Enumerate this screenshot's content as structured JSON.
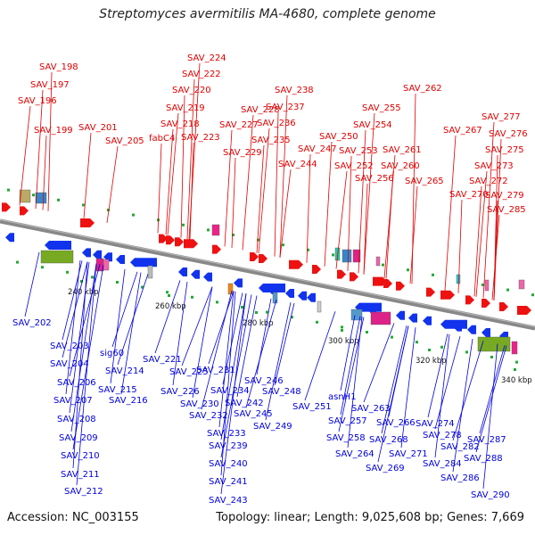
{
  "header": {
    "title": "Streptomyces avermitilis MA-4680, complete genome"
  },
  "footer": {
    "accession": "Accession: NC_003155",
    "topology": "Topology: linear; Length: 9,025,608 bp; Genes: 7,669"
  },
  "scale_labels": [
    "240 kbp",
    "260 kbp",
    "280 kbp",
    "300 kbp",
    "320 kbp",
    "340 kbp"
  ],
  "colors": {
    "forward_label": "#e00000",
    "reverse_label": "#0000dd",
    "forward_gene": "#ee1111",
    "reverse_gene": "#1133ee",
    "backbone": "#888888"
  },
  "forward_genes": [
    "SAV_198",
    "SAV_197",
    "SAV_196",
    "SAV_199",
    "SAV_201",
    "SAV_205",
    "fabC4",
    "SAV_218",
    "SAV_219",
    "SAV_220",
    "SAV_222",
    "SAV_224",
    "SAV_223",
    "SAV_227",
    "SAV_228",
    "SAV_229",
    "SAV_235",
    "SAV_236",
    "SAV_237",
    "SAV_238",
    "SAV_244",
    "SAV_247",
    "SAV_250",
    "SAV_252",
    "SAV_253",
    "SAV_254",
    "SAV_255",
    "SAV_256",
    "SAV_260",
    "SAV_261",
    "SAV_262",
    "SAV_265",
    "SAV_267",
    "SAV_270",
    "SAV_272",
    "SAV_273",
    "SAV_275",
    "SAV_276",
    "SAV_277",
    "SAV_279",
    "SAV_285"
  ],
  "reverse_genes": [
    "SAV_202",
    "SAV_203",
    "SAV_204",
    "SAV_206",
    "SAV_207",
    "SAV_208",
    "SAV_209",
    "SAV_210",
    "SAV_211",
    "SAV_212",
    "sig60",
    "SAV_214",
    "SAV_215",
    "SAV_216",
    "SAV_221",
    "SAV_225",
    "SAV_226",
    "SAV_230",
    "SAV_231",
    "SAV_232",
    "SAV_233",
    "SAV_234",
    "SAV_239",
    "SAV_240",
    "SAV_241",
    "SAV_242",
    "SAV_243",
    "SAV_245",
    "SAV_246",
    "SAV_248",
    "SAV_249",
    "SAV_251",
    "asnH1",
    "SAV_257",
    "SAV_258",
    "SAV_263",
    "SAV_264",
    "SAV_266",
    "SAV_268",
    "SAV_269",
    "SAV_271",
    "SAV_274",
    "SAV_278",
    "SAV_282",
    "SAV_284",
    "SAV_286",
    "SAV_287",
    "SAV_288",
    "SAV_290"
  ]
}
